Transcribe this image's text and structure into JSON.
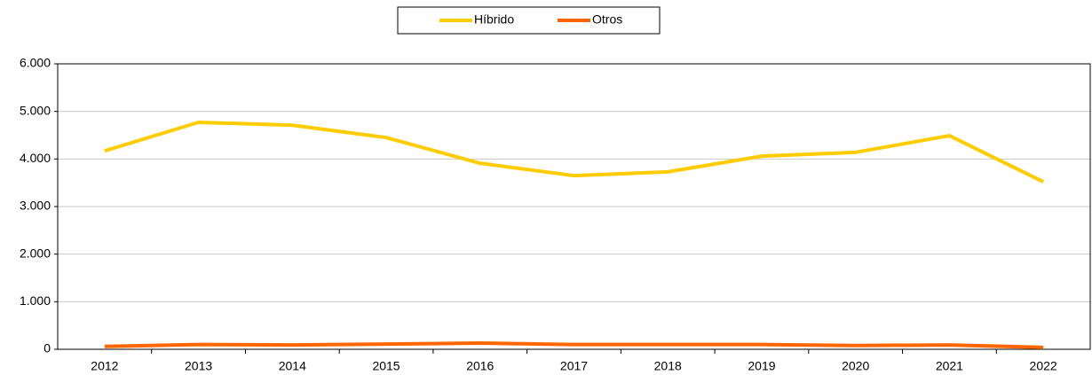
{
  "chart_data": {
    "type": "line",
    "categories": [
      "2012",
      "2013",
      "2014",
      "2015",
      "2016",
      "2017",
      "2018",
      "2019",
      "2020",
      "2021",
      "2022"
    ],
    "series": [
      {
        "name": "Híbrido",
        "color": "#ffcc00",
        "values": [
          4170,
          4770,
          4710,
          4450,
          3910,
          3650,
          3730,
          4060,
          4140,
          4490,
          3520
        ]
      },
      {
        "name": "Otros",
        "color": "#ff6600",
        "values": [
          60,
          100,
          90,
          110,
          130,
          100,
          100,
          100,
          80,
          90,
          40
        ]
      }
    ],
    "ylim": [
      0,
      6000
    ],
    "yticks": [
      0,
      {
        "value": 1000,
        "label": "1.000"
      },
      {
        "value": 2000,
        "label": "2.000"
      },
      {
        "value": 3000,
        "label": "3.000"
      },
      {
        "value": 4000,
        "label": "4.000"
      },
      {
        "value": 5000,
        "label": "5.000"
      },
      {
        "value": 6000,
        "label": "6.000"
      }
    ],
    "grid": true,
    "legend": "top"
  }
}
